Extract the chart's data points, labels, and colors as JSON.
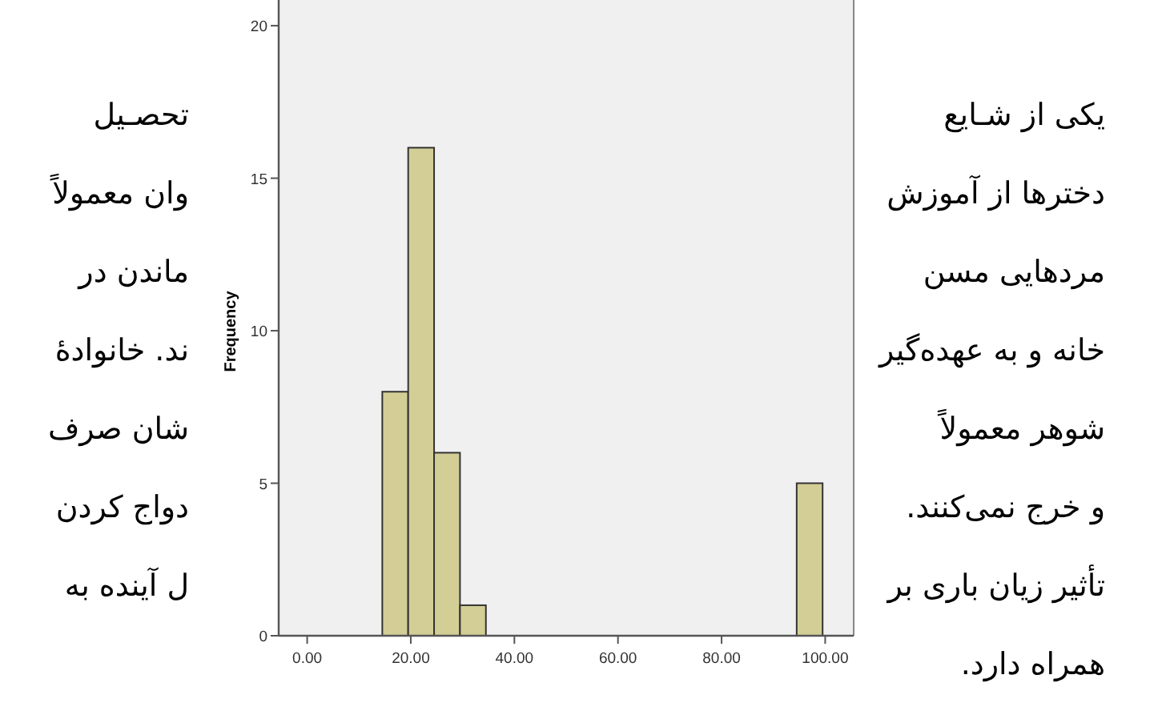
{
  "chart_data": {
    "type": "histogram",
    "ylabel": "Frequency",
    "bins": [
      14.5,
      19.5,
      24.5,
      29.5,
      34.5,
      39.5,
      44.5,
      49.5,
      54.5,
      59.5,
      64.5,
      69.5,
      74.5,
      79.5,
      84.5,
      89.5,
      94.5,
      99.5
    ],
    "values": [
      8,
      16,
      6,
      1,
      0,
      0,
      0,
      0,
      0,
      0,
      0,
      0,
      0,
      0,
      0,
      0,
      5
    ],
    "color": "#d3ce96",
    "xlim": [
      -5.5,
      105.5
    ],
    "xticks": [
      {
        "value": 0,
        "label": "0.00"
      },
      {
        "value": 20,
        "label": "20.00"
      },
      {
        "value": 40,
        "label": "40.00"
      },
      {
        "value": 60,
        "label": "60.00"
      },
      {
        "value": 80,
        "label": "80.00"
      },
      {
        "value": 100,
        "label": "100.00"
      }
    ],
    "ylim": [
      0,
      21
    ],
    "yticks": [
      0,
      5,
      10,
      15,
      20
    ],
    "grid": false,
    "annotations": [
      "یکی از شـایع",
      "تحصـیل",
      "دخترها از آموزش",
      "وان معمولاً",
      "مردهایی مسن",
      "ماندن در",
      "خانه و به عهده‌گیر",
      "ند. خانوادهٔ",
      "شوهر معمولاً",
      "شان صرف",
      "و خرج نمی‌کنند.",
      "دواج کردن",
      "تأثیر زیان باری بر",
      "ل آینده به",
      "همراه دارد."
    ]
  }
}
